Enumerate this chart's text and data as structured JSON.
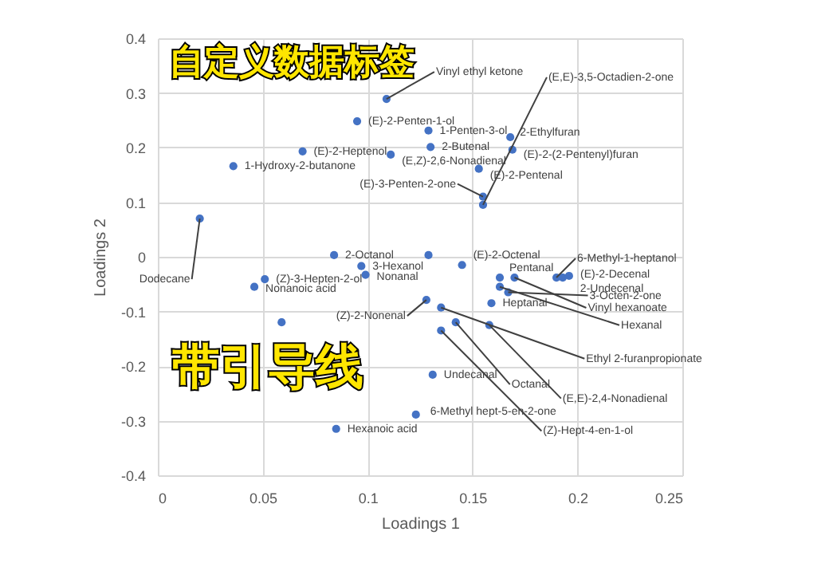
{
  "chart_data": {
    "type": "scatter",
    "xlabel": "Loadings 1",
    "ylabel": "Loadings 2",
    "xlim": [
      0,
      0.25
    ],
    "xticks": [
      0,
      0.05,
      0.1,
      0.15,
      0.2,
      0.25
    ],
    "ylim": [
      -0.4,
      0.4
    ],
    "yticks": [
      -0.4,
      -0.3,
      -0.2,
      -0.1,
      0,
      0.1,
      0.2,
      0.3,
      0.4
    ],
    "grid": true,
    "marker": "circle",
    "series": [
      {
        "color": "#4472c4",
        "x": [
          0.109,
          0.095,
          0.129,
          0.069,
          0.036,
          0.111,
          0.13,
          0.168,
          0.169,
          0.153,
          0.155,
          0.084,
          0.097,
          0.099,
          0.051,
          0.046,
          0.128,
          0.131,
          0.123,
          0.085,
          0.145,
          0.19,
          0.193,
          0.196,
          0.167,
          0.163,
          0.159,
          0.17,
          0.163,
          0.135,
          0.158,
          0.142,
          0.135,
          0.02,
          0.155,
          0.129,
          0.059
        ],
        "values": [
          0.289,
          0.248,
          0.231,
          0.193,
          0.166,
          0.187,
          0.201,
          0.219,
          0.196,
          0.161,
          0.095,
          0.003,
          -0.017,
          -0.033,
          -0.041,
          -0.055,
          -0.079,
          -0.216,
          -0.289,
          -0.315,
          -0.015,
          -0.038,
          -0.038,
          -0.035,
          -0.065,
          -0.038,
          -0.085,
          -0.038,
          -0.055,
          -0.093,
          -0.125,
          -0.12,
          -0.135,
          0.07,
          0.11,
          0.003,
          -0.12
        ]
      }
    ],
    "annotations": [
      "自定义数据标签",
      "带引导线",
      {
        "text": "Vinyl ethyl ketone",
        "x": 0.109,
        "y": 0.289
      },
      {
        "text": "(E)-2-Penten-1-ol",
        "x": 0.095,
        "y": 0.248
      },
      {
        "text": "1-Penten-3-ol",
        "x": 0.129,
        "y": 0.231
      },
      {
        "text": "(E)-2-Heptenol",
        "x": 0.069,
        "y": 0.193
      },
      {
        "text": "1-Hydroxy-2-butanone",
        "x": 0.036,
        "y": 0.166
      },
      {
        "text": "(E,Z)-2,6-Nonadienal",
        "x": 0.111,
        "y": 0.187
      },
      {
        "text": "2-Butenal",
        "x": 0.13,
        "y": 0.201
      },
      {
        "text": "2-Ethylfuran",
        "x": 0.168,
        "y": 0.219
      },
      {
        "text": "(E)-2-(2-Pentenyl)furan",
        "x": 0.169,
        "y": 0.196
      },
      {
        "text": "(E)-2-Pentenal",
        "x": 0.153,
        "y": 0.161
      },
      {
        "text": "(E,E)-3,5-Octadien-2-one",
        "x": 0.155,
        "y": 0.095
      },
      {
        "text": "2-Octanol",
        "x": 0.084,
        "y": 0.003
      },
      {
        "text": "3-Hexanol",
        "x": 0.097,
        "y": -0.017
      },
      {
        "text": "Nonanal",
        "x": 0.099,
        "y": -0.033
      },
      {
        "text": "(Z)-3-Hepten-2-ol",
        "x": 0.051,
        "y": -0.041
      },
      {
        "text": "Nonanoic acid",
        "x": 0.046,
        "y": -0.055
      },
      {
        "text": "(Z)-2-Nonenal",
        "x": 0.128,
        "y": -0.079
      },
      {
        "text": "Undecanal",
        "x": 0.131,
        "y": -0.216
      },
      {
        "text": "6-Methyl hept-5-en-2-one",
        "x": 0.123,
        "y": -0.289
      },
      {
        "text": "Hexanoic acid",
        "x": 0.085,
        "y": -0.315
      },
      {
        "text": "(E)-2-Octenal",
        "x": 0.145,
        "y": -0.015
      },
      {
        "text": "6-Methyl-1-heptanol",
        "x": 0.19,
        "y": -0.038
      },
      {
        "text": "(E)-2-Decenal",
        "x": 0.193,
        "y": -0.038
      },
      {
        "text": "2-Undecenal",
        "x": 0.196,
        "y": -0.035
      },
      {
        "text": "3-Octen-2-one",
        "x": 0.167,
        "y": -0.065
      },
      {
        "text": "Pentanal",
        "x": 0.163,
        "y": -0.038
      },
      {
        "text": "Heptanal",
        "x": 0.159,
        "y": -0.085
      },
      {
        "text": "Vinyl hexanoate",
        "x": 0.17,
        "y": -0.038
      },
      {
        "text": "Hexanal",
        "x": 0.163,
        "y": -0.055
      },
      {
        "text": "Ethyl 2-furanpropionate",
        "x": 0.135,
        "y": -0.093
      },
      {
        "text": "(E,E)-2,4-Nonadienal",
        "x": 0.158,
        "y": -0.125
      },
      {
        "text": "Octanal",
        "x": 0.142,
        "y": -0.12
      },
      {
        "text": "(Z)-Hept-4-en-1-ol",
        "x": 0.135,
        "y": -0.135
      },
      {
        "text": "Dodecane",
        "x": 0.02,
        "y": 0.07
      },
      {
        "text": "(E)-3-Penten-2-one",
        "x": 0.155,
        "y": 0.11
      }
    ]
  }
}
